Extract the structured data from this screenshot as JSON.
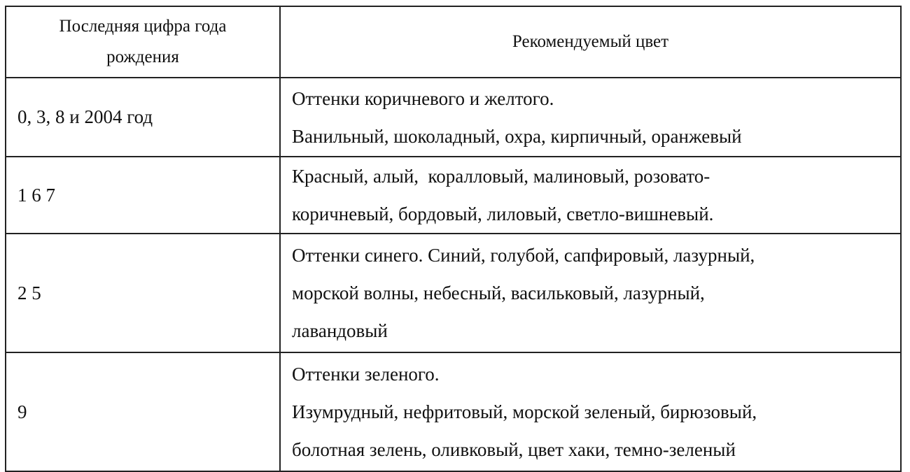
{
  "table": {
    "headers": [
      "Последняя цифра года рождения",
      "Рекомендуемый цвет"
    ],
    "header_lines": [
      "Последняя цифра года",
      "рождения"
    ],
    "rows": [
      {
        "digits": "0, 3, 8 и 2004 год",
        "colors": [
          "Оттенки коричневого и желтого.",
          "Ванильный, шоколадный, охра, кирпичный, оранжевый"
        ]
      },
      {
        "digits": "1 6 7",
        "colors": [
          "Красный, алый,  коралловый, малиновый, розовато-",
          "коричневый, бордовый, лиловый, светло-вишневый."
        ]
      },
      {
        "digits": "2 5",
        "colors": [
          "Оттенки синего. Синий, голубой, сапфировый, лазурный,",
          "морской волны, небесный, васильковый, лазурный,",
          "лавандовый"
        ]
      },
      {
        "digits": "9",
        "colors": [
          "Оттенки зеленого.",
          "Изумрудный, нефритовый, морской зеленый, бирюзовый,",
          "болотная зелень, оливковый, цвет хаки, темно-зеленый"
        ]
      }
    ]
  }
}
